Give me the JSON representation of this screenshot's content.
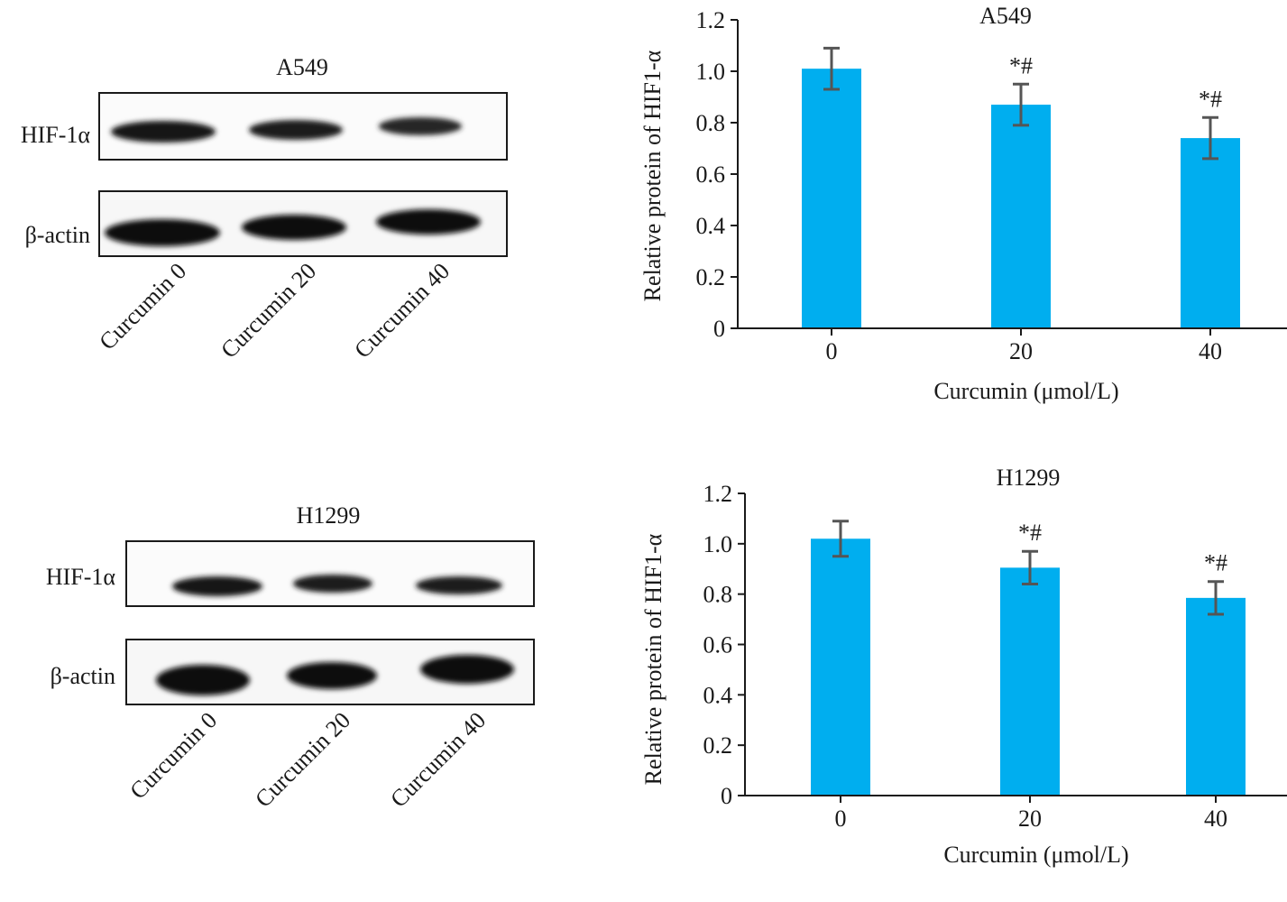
{
  "blots": [
    {
      "title": "A549",
      "rows": [
        "HIF-1α",
        "β-actin"
      ],
      "lanes": [
        "Curcumin 0",
        "Curcumin 20",
        "Curcumin 40"
      ]
    },
    {
      "title": "H1299",
      "rows": [
        "HIF-1α",
        "β-actin"
      ],
      "lanes": [
        "Curcumin 0",
        "Curcumin 20",
        "Curcumin 40"
      ]
    }
  ],
  "chart_data": [
    {
      "type": "bar",
      "title": "A549",
      "xlabel": "Curcumin (μmol/L)",
      "ylabel": "Relative protein of HIF1-α",
      "categories": [
        "0",
        "20",
        "40"
      ],
      "values": [
        1.01,
        0.87,
        0.74
      ],
      "errors": [
        0.08,
        0.08,
        0.08
      ],
      "annotations": [
        "",
        "*#",
        "*#"
      ],
      "ylim": [
        0,
        1.2
      ],
      "yticks": [
        "0",
        "0.2",
        "0.4",
        "0.6",
        "0.8",
        "1.0",
        "1.2"
      ],
      "bar_color": "#00AEEF",
      "grid": false
    },
    {
      "type": "bar",
      "title": "H1299",
      "xlabel": "Curcumin (μmol/L)",
      "ylabel": "Relative protein of HIF1-α",
      "categories": [
        "0",
        "20",
        "40"
      ],
      "values": [
        1.02,
        0.905,
        0.785
      ],
      "errors": [
        0.07,
        0.065,
        0.065
      ],
      "annotations": [
        "",
        "*#",
        "*#"
      ],
      "ylim": [
        0,
        1.2
      ],
      "yticks": [
        "0",
        "0.2",
        "0.4",
        "0.6",
        "0.8",
        "1.0",
        "1.2"
      ],
      "bar_color": "#00AEEF",
      "grid": false
    }
  ]
}
